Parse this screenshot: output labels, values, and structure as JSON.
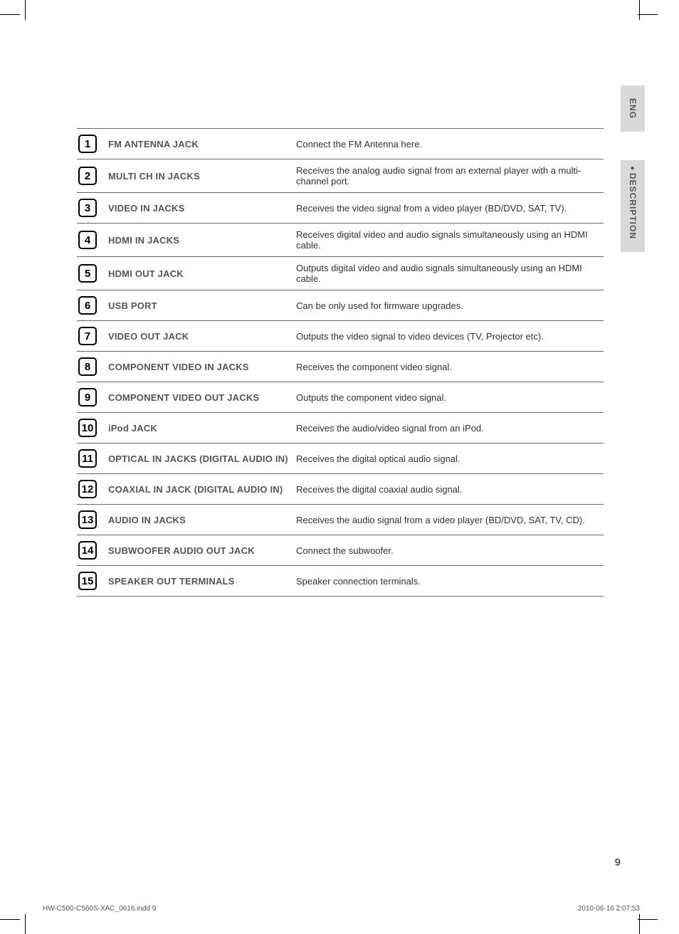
{
  "side": {
    "lang": "ENG",
    "section": "DESCRIPTION"
  },
  "rows": [
    {
      "n": "1",
      "label": "FM ANTENNA JACK",
      "desc": "Connect the FM Antenna here."
    },
    {
      "n": "2",
      "label": "MULTI CH IN JACKS",
      "desc": "Receives the analog audio signal from an external player with a multi-channel port."
    },
    {
      "n": "3",
      "label": "VIDEO IN JACKS",
      "desc": "Receives the video signal from a video player (BD/DVD, SAT, TV)."
    },
    {
      "n": "4",
      "label": "HDMI IN JACKS",
      "desc": "Receives digital video and audio signals simultaneously using an HDMI cable."
    },
    {
      "n": "5",
      "label": "HDMI OUT JACK",
      "desc": "Outputs digital video and audio signals simultaneously using an HDMI cable."
    },
    {
      "n": "6",
      "label": "USB PORT",
      "desc": "Can be only used for firmware upgrades."
    },
    {
      "n": "7",
      "label": "VIDEO OUT JACK",
      "desc": "Outputs the video signal to video devices (TV, Projector etc)."
    },
    {
      "n": "8",
      "label": "COMPONENT VIDEO IN JACKS",
      "desc": "Receives the component video signal."
    },
    {
      "n": "9",
      "label": "COMPONENT VIDEO OUT JACKS",
      "desc": "Outputs the component video signal."
    },
    {
      "n": "10",
      "label": "iPod JACK",
      "desc": "Receives the audio/video signal from an iPod."
    },
    {
      "n": "11",
      "label": "OPTICAL IN JACKS (DIGITAL AUDIO IN)",
      "desc": "Receives the digital optical audio signal."
    },
    {
      "n": "12",
      "label": "COAXIAL IN JACK (DIGITAL AUDIO IN)",
      "desc": "Receives the digital coaxial audio signal."
    },
    {
      "n": "13",
      "label": "AUDIO IN JACKS",
      "desc": "Receives the audio signal from a video player (BD/DVD, SAT, TV, CD)."
    },
    {
      "n": "14",
      "label": "SUBWOOFER AUDIO OUT JACK",
      "desc": "Connect the subwoofer."
    },
    {
      "n": "15",
      "label": "SPEAKER OUT TERMINALS",
      "desc": "Speaker connection terminals."
    }
  ],
  "page_number": "9",
  "footer": {
    "file": "HW-C500-C560S-XAC_0616.indd   9",
    "timestamp": "2010-06-16   2:07:53"
  }
}
